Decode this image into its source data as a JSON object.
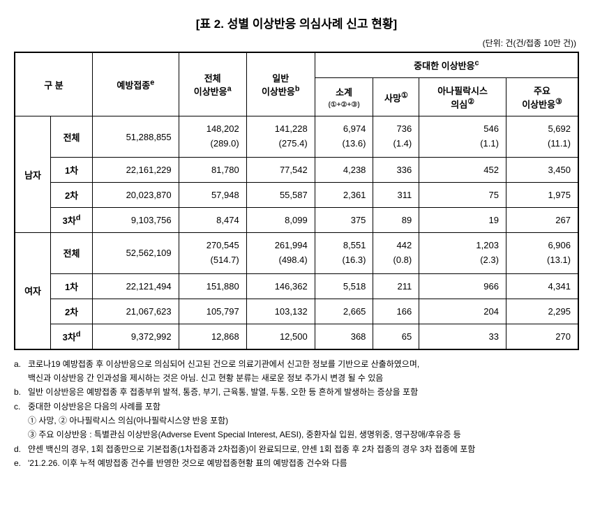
{
  "title": "[표 2. 성별 이상반응 의심사례 신고 현황]",
  "unit": "(단위: 건(건/접종 10만 건))",
  "headers": {
    "category": "구 분",
    "vaccination": "예방접종",
    "vaccination_sup": "e",
    "total_adverse": "전체\n이상반응",
    "total_adverse_sup": "a",
    "general_adverse": "일반\n이상반응",
    "general_adverse_sup": "b",
    "serious_adverse": "중대한 이상반응",
    "serious_adverse_sup": "c",
    "subtotal": "소계",
    "subtotal_sub": "(①+②+③)",
    "death": "사망",
    "death_sup": "①",
    "anaphylaxis": "아나필락시스\n의심",
    "anaphylaxis_sup": "②",
    "major": "주요\n이상반응",
    "major_sup": "③"
  },
  "groups": [
    {
      "name": "남자",
      "rows": [
        {
          "label": "전체",
          "vaccination": "51,288,855",
          "total": "148,202",
          "total_rate": "(289.0)",
          "general": "141,228",
          "general_rate": "(275.4)",
          "subtotal": "6,974",
          "subtotal_rate": "(13.6)",
          "death": "736",
          "death_rate": "(1.4)",
          "ana": "546",
          "ana_rate": "(1.1)",
          "major": "5,692",
          "major_rate": "(11.1)",
          "has_rate": true
        },
        {
          "label": "1차",
          "vaccination": "22,161,229",
          "total": "81,780",
          "general": "77,542",
          "subtotal": "4,238",
          "death": "336",
          "ana": "452",
          "major": "3,450",
          "has_rate": false
        },
        {
          "label": "2차",
          "vaccination": "20,023,870",
          "total": "57,948",
          "general": "55,587",
          "subtotal": "2,361",
          "death": "311",
          "ana": "75",
          "major": "1,975",
          "has_rate": false
        },
        {
          "label": "3차",
          "label_sup": "d",
          "vaccination": "9,103,756",
          "total": "8,474",
          "general": "8,099",
          "subtotal": "375",
          "death": "89",
          "ana": "19",
          "major": "267",
          "has_rate": false
        }
      ]
    },
    {
      "name": "여자",
      "rows": [
        {
          "label": "전체",
          "vaccination": "52,562,109",
          "total": "270,545",
          "total_rate": "(514.7)",
          "general": "261,994",
          "general_rate": "(498.4)",
          "subtotal": "8,551",
          "subtotal_rate": "(16.3)",
          "death": "442",
          "death_rate": "(0.8)",
          "ana": "1,203",
          "ana_rate": "(2.3)",
          "major": "6,906",
          "major_rate": "(13.1)",
          "has_rate": true
        },
        {
          "label": "1차",
          "vaccination": "22,121,494",
          "total": "151,880",
          "general": "146,362",
          "subtotal": "5,518",
          "death": "211",
          "ana": "966",
          "major": "4,341",
          "has_rate": false
        },
        {
          "label": "2차",
          "vaccination": "21,067,623",
          "total": "105,797",
          "general": "103,132",
          "subtotal": "2,665",
          "death": "166",
          "ana": "204",
          "major": "2,295",
          "has_rate": false
        },
        {
          "label": "3차",
          "label_sup": "d",
          "vaccination": "9,372,992",
          "total": "12,868",
          "general": "12,500",
          "subtotal": "368",
          "death": "65",
          "ana": "33",
          "major": "270",
          "has_rate": false
        }
      ]
    }
  ],
  "footnotes": {
    "a1": "코로나19 예방접종 후 이상반응으로 의심되어 신고된 건으로 의료기관에서 신고한 정보를 기반으로 산출하였으며,",
    "a2": "백신과 이상반응 간 인과성을 제시하는 것은 아님. 신고 현황 분류는 새로운 정보 추가시 변경 될 수 있음",
    "b": "일반 이상반응은 예방접종 후 접종부위 발적, 통증, 부기, 근육통, 발열, 두통, 오한 등 흔하게 발생하는 증상을 포함",
    "c": "중대한 이상반응은 다음의 사례를 포함",
    "c1": "① 사망, ② 아나필락시스 의심(아나필락시스양 반응 포함)",
    "c3": "③ 주요 이상반응 : 특별관심 이상반응(Adverse Event Special Interest, AESI), 중환자실 입원, 생명위중, 영구장애/후유증 등",
    "d": "얀센 백신의 경우, 1회 접종만으로 기본접종(1차접종과 2차접종)이 완료되므로, 얀센 1회 접종 후 2차 접종의 경우 3차 접종에 포함",
    "e": "'21.2.26. 이후 누적 예방접종 건수를 반영한 것으로 예방접종현황 표의 예방접종 건수와 다름"
  }
}
